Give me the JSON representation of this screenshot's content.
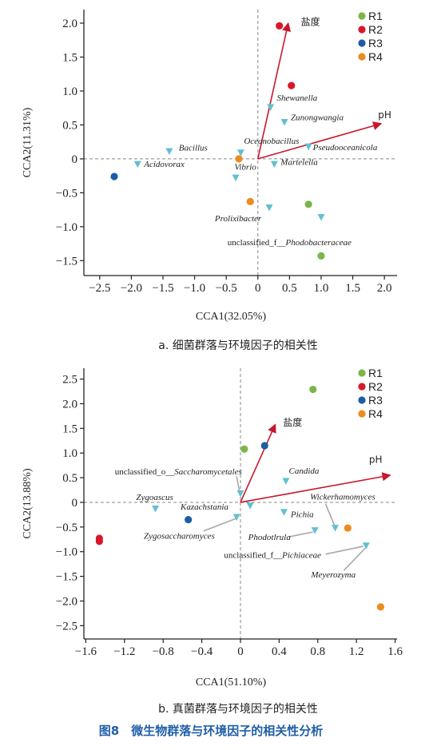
{
  "chart_data": [
    {
      "type": "scatter",
      "xlabel": "CCA1(32.05%)",
      "ylabel": "CCA2(11.31%)",
      "xlim": [
        -2.75,
        2.2
      ],
      "ylim": [
        -1.72,
        2.2
      ],
      "xticks": [
        -2.5,
        -2.0,
        -1.5,
        -1.0,
        -0.5,
        0,
        0.5,
        1.0,
        1.5,
        2.0
      ],
      "xtick_labels": [
        "−2.5",
        "−2.0",
        "−1.5",
        "−1.0",
        "−0.5",
        "0",
        "0.5",
        "1.0",
        "1.5",
        "2.0"
      ],
      "yticks": [
        -1.5,
        -1.0,
        -0.5,
        0,
        0.5,
        1.0,
        1.5,
        2.0
      ],
      "ytick_labels": [
        "−1.5",
        "−1.0",
        "−0.5",
        "0",
        "0.5",
        "1.0",
        "1.5",
        "2.0"
      ],
      "caption": "a. 细菌群落与环境因子的相关性",
      "legend_placement": "top-right",
      "samples": [
        {
          "name": "R1",
          "color": "#7ab648",
          "points": [
            [
              0.8,
              -0.67
            ],
            [
              1.0,
              -1.43
            ]
          ]
        },
        {
          "name": "R2",
          "color": "#d7182a",
          "points": [
            [
              0.34,
              1.96
            ],
            [
              0.53,
              1.08
            ]
          ]
        },
        {
          "name": "R3",
          "color": "#1b5ea4",
          "points": [
            [
              -2.27,
              -0.26
            ]
          ]
        },
        {
          "name": "R4",
          "color": "#ec8b1e",
          "points": [
            [
              -0.3,
              0.0
            ],
            [
              -0.12,
              -0.63
            ]
          ]
        }
      ],
      "species_color": "#62c0cf",
      "species": [
        {
          "label": "Shewanella",
          "x": 0.2,
          "y": 0.76,
          "lx": 0.3,
          "ly": 0.86,
          "anchor": "start"
        },
        {
          "label": "Zunongwangia",
          "x": 0.42,
          "y": 0.54,
          "lx": 0.52,
          "ly": 0.57,
          "anchor": "start"
        },
        {
          "label": "Oceanobacillus",
          "x": -0.27,
          "y": 0.09,
          "lx": -0.22,
          "ly": 0.22,
          "anchor": "start"
        },
        {
          "label": "Pseudooceanicola",
          "x": 0.8,
          "y": 0.18,
          "lx": 0.87,
          "ly": 0.13,
          "anchor": "start"
        },
        {
          "label": "Bacillus",
          "x": -1.4,
          "y": 0.11,
          "lx": -1.25,
          "ly": 0.12,
          "anchor": "start"
        },
        {
          "label": "Acidovorax",
          "x": -1.9,
          "y": -0.08,
          "lx": -1.8,
          "ly": -0.12,
          "anchor": "start"
        },
        {
          "label": "Vibrio",
          "x": -0.35,
          "y": -0.28,
          "lx": -0.37,
          "ly": -0.16,
          "anchor": "start"
        },
        {
          "label": "Martelella",
          "x": 0.26,
          "y": -0.08,
          "lx": 0.36,
          "ly": -0.09,
          "anchor": "start"
        },
        {
          "label": "Prolixibacter",
          "x": 0.18,
          "y": -0.72,
          "lx": -0.68,
          "ly": -0.92,
          "anchor": "start"
        },
        {
          "label": "",
          "x": 1.0,
          "y": -0.86
        }
      ],
      "extra_labels": [
        {
          "prefix": "unclassified_f__",
          "italic": "Phodobacteraceae",
          "lx": -0.48,
          "ly": -1.27
        }
      ],
      "vectors": [
        {
          "name": "盐度",
          "x": 0.48,
          "y": 2.0,
          "lx": 0.68,
          "ly": 1.97
        },
        {
          "name": "pH",
          "x": 1.95,
          "y": 0.52,
          "lx": 1.9,
          "ly": 0.6
        }
      ]
    },
    {
      "type": "scatter",
      "xlabel": "CCA1(51.10%)",
      "ylabel": "CCA2(13.88%)",
      "xlim": [
        -1.62,
        1.62
      ],
      "ylim": [
        -2.77,
        2.72
      ],
      "xticks": [
        -1.6,
        -1.2,
        -0.8,
        -0.4,
        0,
        0.4,
        0.8,
        1.2,
        1.6
      ],
      "xtick_labels": [
        "−1.6",
        "−1.2",
        "−0.8",
        "−0.4",
        "0",
        "0.4",
        "0.8",
        "1.2",
        "1.6"
      ],
      "yticks": [
        -2.5,
        -2.0,
        -1.5,
        -1.0,
        -0.5,
        0,
        0.5,
        1.0,
        1.5,
        2.0,
        2.5
      ],
      "ytick_labels": [
        "−2.5",
        "−2.0",
        "−1.5",
        "−1.0",
        "−0.5",
        "0",
        "0.5",
        "1.0",
        "1.5",
        "2.0",
        "2.5"
      ],
      "caption": "b. 真菌群落与环境因子的相关性",
      "legend_placement": "top-right",
      "samples": [
        {
          "name": "R1",
          "color": "#7ab648",
          "points": [
            [
              0.75,
              2.29
            ],
            [
              0.04,
              1.08
            ]
          ]
        },
        {
          "name": "R2",
          "color": "#d7182a",
          "points": [
            [
              -1.46,
              -0.73
            ],
            [
              -1.46,
              -0.79
            ]
          ]
        },
        {
          "name": "R3",
          "color": "#1b5ea4",
          "points": [
            [
              0.25,
              1.15
            ],
            [
              -0.54,
              -0.35
            ]
          ]
        },
        {
          "name": "R4",
          "color": "#ec8b1e",
          "points": [
            [
              1.11,
              -0.52
            ],
            [
              1.45,
              -2.12
            ]
          ]
        }
      ],
      "species_color": "#62c0cf",
      "species": [
        {
          "label": "Candida",
          "x": 0.47,
          "y": 0.43,
          "lx": 0.5,
          "ly": 0.58,
          "anchor": "start"
        },
        {
          "label": "Zygoascus",
          "x": -0.88,
          "y": -0.13,
          "lx": -1.08,
          "ly": 0.05,
          "anchor": "start"
        },
        {
          "label": "Kazachstania",
          "x": 0.1,
          "y": -0.07,
          "lx": -0.62,
          "ly": -0.15,
          "anchor": "start"
        },
        {
          "label": "Pichia",
          "x": 0.45,
          "y": -0.2,
          "lx": 0.52,
          "ly": -0.3,
          "anchor": "start"
        },
        {
          "label": "",
          "x": 0.0,
          "y": 0.18
        },
        {
          "label": "",
          "x": -0.04,
          "y": -0.3
        },
        {
          "label": "",
          "x": 0.77,
          "y": -0.57
        },
        {
          "label": "",
          "x": 0.98,
          "y": -0.52
        },
        {
          "label": "",
          "x": 1.3,
          "y": -0.88
        }
      ],
      "leader_labels": [
        {
          "prefix": "unclassified_o__",
          "italic": "Saccharomycetales",
          "lx": -1.3,
          "ly": 0.57,
          "from": [
            -0.04,
            0.53
          ],
          "to": [
            -0.01,
            0.22
          ]
        },
        {
          "prefix": "",
          "italic": "Zygosaccharomyces",
          "lx": -1.0,
          "ly": -0.74,
          "from": [
            -0.38,
            -0.58
          ],
          "to": [
            -0.05,
            -0.33
          ]
        },
        {
          "prefix": "",
          "italic": "Wickerhamomyces",
          "lx": 0.72,
          "ly": 0.06,
          "from": [
            0.88,
            -0.03
          ],
          "to": [
            0.97,
            -0.46
          ]
        },
        {
          "prefix": "",
          "italic": "Phodotlrula",
          "lx": 0.08,
          "ly": -0.76,
          "from": [
            0.5,
            -0.7
          ],
          "to": [
            0.75,
            -0.6
          ]
        },
        {
          "prefix": "unclassified_f__",
          "italic": "Pichiaceae",
          "lx": -0.17,
          "ly": -1.13,
          "from": [
            0.88,
            -1.05
          ],
          "to": [
            1.27,
            -0.89
          ]
        },
        {
          "prefix": "",
          "italic": "Meyerozyma",
          "lx": 0.73,
          "ly": -1.52,
          "from": [
            1.07,
            -1.38
          ],
          "to": [
            1.29,
            -0.93
          ]
        }
      ],
      "vectors": [
        {
          "name": "盐度",
          "x": 0.36,
          "y": 1.58,
          "lx": 0.44,
          "ly": 1.55
        },
        {
          "name": "pH",
          "x": 1.55,
          "y": 0.55,
          "lx": 1.33,
          "ly": 0.8
        }
      ]
    }
  ],
  "legend_title": "",
  "figure_caption": "图8　微生物群落与环境因子的相关性分析",
  "colors": {
    "axis": "#222222",
    "vector": "#c8172c",
    "dash": "#888888",
    "leader": "#a8a8a8"
  }
}
